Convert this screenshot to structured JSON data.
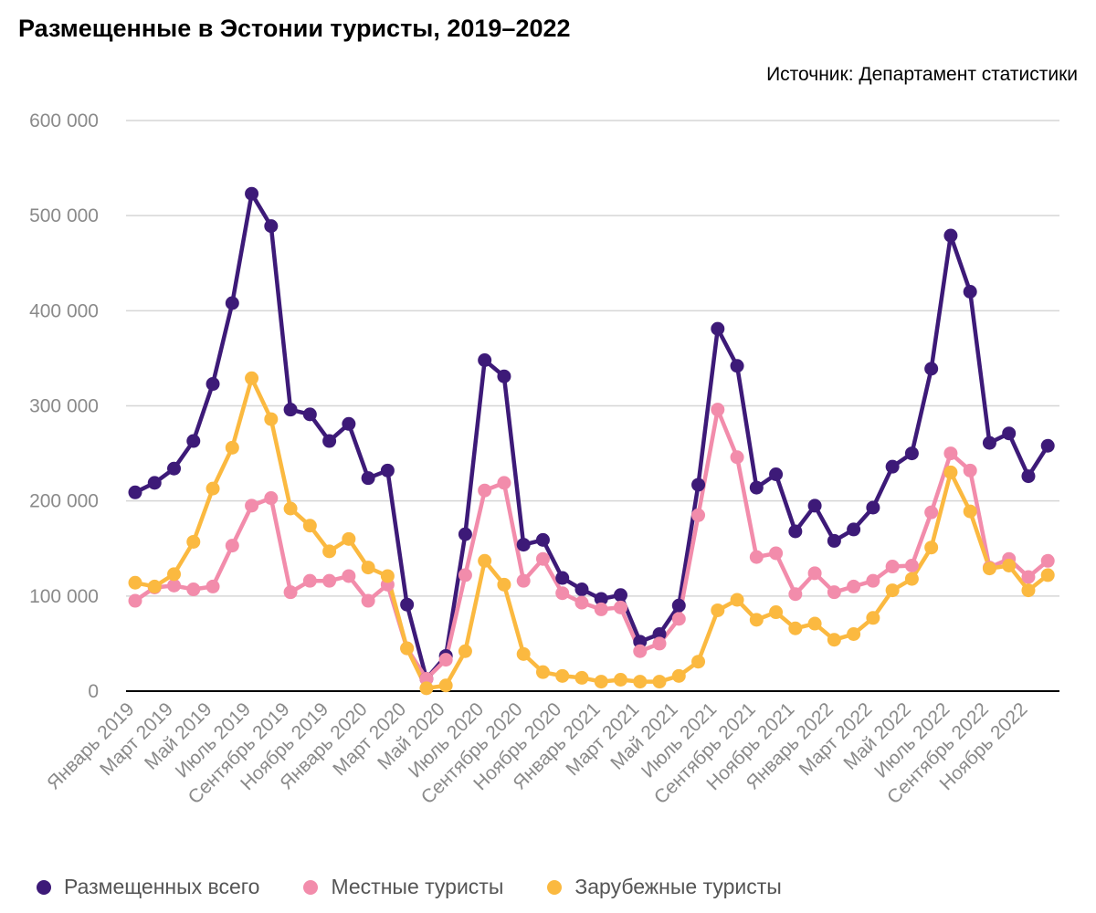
{
  "chart_data": {
    "type": "line",
    "title": "Размещенные в Эстонии туристы, 2019–2022",
    "source": "Источник: Департамент статистики",
    "ylim": [
      0,
      600000
    ],
    "yticks": [
      0,
      100000,
      200000,
      300000,
      400000,
      500000,
      600000
    ],
    "ytick_labels": [
      "0",
      "100 000",
      "200 000",
      "300 000",
      "400 000",
      "500 000",
      "600 000"
    ],
    "xtick_labels": [
      "Январь 2019",
      "Март 2019",
      "Май 2019",
      "Июль 2019",
      "Сентябрь 2019",
      "Ноябрь 2019",
      "Январь 2020",
      "Март 2020",
      "Май 2020",
      "Июль 2020",
      "Сентябрь 2020",
      "Ноябрь 2020",
      "Январь 2021",
      "Март 2021",
      "Май 2021",
      "Июль 2021",
      "Сентябрь 2021",
      "Ноябрь 2021",
      "Январь 2022",
      "Март 2022",
      "Май 2022",
      "Июль 2022",
      "Сентябрь 2022",
      "Ноябрь 2022"
    ],
    "grid": true,
    "legend_position": "bottom",
    "series": [
      {
        "name": "Размещенных всего",
        "color": "#3d1a78",
        "values": [
          209000,
          219000,
          234000,
          263000,
          323000,
          408000,
          523000,
          489000,
          296000,
          291000,
          263000,
          281000,
          224000,
          232000,
          91000,
          13000,
          37000,
          165000,
          348000,
          331000,
          154000,
          159000,
          119000,
          107000,
          97000,
          101000,
          52000,
          60000,
          90000,
          217000,
          381000,
          342000,
          214000,
          228000,
          168000,
          195000,
          158000,
          170000,
          193000,
          236000,
          250000,
          339000,
          479000,
          420000,
          261000,
          271000,
          226000,
          258000
        ]
      },
      {
        "name": "Местные туристы",
        "color": "#f28cab",
        "values": [
          95000,
          109000,
          111000,
          107000,
          110000,
          153000,
          195000,
          203000,
          104000,
          116000,
          116000,
          121000,
          95000,
          112000,
          45000,
          13000,
          33000,
          122000,
          211000,
          219000,
          116000,
          139000,
          103000,
          93000,
          86000,
          88000,
          42000,
          50000,
          76000,
          185000,
          296000,
          246000,
          141000,
          145000,
          102000,
          124000,
          104000,
          110000,
          116000,
          131000,
          132000,
          188000,
          250000,
          232000,
          130000,
          139000,
          120000,
          137000
        ]
      },
      {
        "name": "Зарубежные туристы",
        "color": "#fbb940",
        "values": [
          114000,
          110000,
          123000,
          157000,
          213000,
          256000,
          329000,
          286000,
          192000,
          174000,
          147000,
          160000,
          130000,
          121000,
          45000,
          3000,
          6000,
          42000,
          137000,
          112000,
          39000,
          20000,
          16000,
          14000,
          10000,
          12000,
          10000,
          10000,
          16000,
          31000,
          85000,
          96000,
          75000,
          83000,
          66000,
          71000,
          54000,
          60000,
          77000,
          106000,
          118000,
          151000,
          230000,
          189000,
          129000,
          132000,
          106000,
          122000
        ]
      }
    ]
  }
}
